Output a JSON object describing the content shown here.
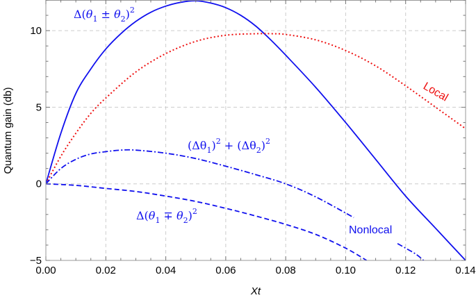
{
  "chart_data": {
    "type": "line",
    "title": "",
    "xlabel": "Xt",
    "ylabel": "Quantum gain (db)",
    "xlim": [
      0,
      0.14
    ],
    "ylim": [
      -5,
      12
    ],
    "x_ticks": [
      0.0,
      0.02,
      0.04,
      0.06,
      0.08,
      0.1,
      0.12,
      0.14
    ],
    "x_tick_labels": [
      "0.00",
      "0.02",
      "0.04",
      "0.06",
      "0.08",
      "0.10",
      "0.12",
      "0.14"
    ],
    "y_ticks": [
      -5,
      0,
      5,
      10
    ],
    "y_tick_labels": [
      "−5",
      "0",
      "5",
      "10"
    ],
    "grid": true,
    "legend": "inline annotations",
    "colors": {
      "nonlocal": "#1010ee",
      "local": "#ee1111",
      "grid": "#cccccc",
      "frame": "#999999"
    },
    "series": [
      {
        "name": "Δ(θ1 ± θ2)^2",
        "style": "solid",
        "color": "#1010ee",
        "x": [
          0,
          0.005,
          0.01,
          0.015,
          0.02,
          0.025,
          0.03,
          0.035,
          0.04,
          0.045,
          0.05,
          0.055,
          0.06,
          0.065,
          0.07,
          0.075,
          0.08,
          0.09,
          0.1,
          0.11,
          0.12,
          0.13,
          0.14
        ],
        "y": [
          0,
          3.3,
          5.9,
          7.5,
          8.8,
          9.8,
          10.6,
          11.2,
          11.6,
          11.85,
          11.95,
          11.8,
          11.5,
          11.0,
          10.3,
          9.4,
          8.4,
          6.3,
          4.0,
          1.6,
          -0.8,
          -2.9,
          -5.0
        ]
      },
      {
        "name": "Local",
        "style": "dotted",
        "color": "#ee1111",
        "x": [
          0,
          0.005,
          0.01,
          0.015,
          0.02,
          0.03,
          0.04,
          0.05,
          0.06,
          0.07,
          0.075,
          0.08,
          0.09,
          0.1,
          0.11,
          0.12,
          0.13,
          0.14
        ],
        "y": [
          0,
          1.8,
          3.3,
          4.6,
          5.6,
          7.3,
          8.5,
          9.3,
          9.7,
          9.8,
          9.8,
          9.75,
          9.4,
          8.7,
          7.7,
          6.4,
          5.0,
          3.6
        ]
      },
      {
        "name": "(Δθ1)^2 + (Δθ2)^2",
        "style": "dash-dot",
        "color": "#1010ee",
        "segments": [
          {
            "x": [
              0,
              0.005,
              0.01,
              0.015,
              0.02,
              0.025,
              0.03,
              0.04,
              0.05,
              0.06,
              0.07,
              0.08,
              0.09,
              0.1027
            ],
            "y": [
              0,
              1.0,
              1.6,
              1.95,
              2.1,
              2.2,
              2.2,
              2.0,
              1.65,
              1.15,
              0.6,
              0.0,
              -0.85,
              -2.2
            ]
          },
          {
            "x": [
              0.1173,
              0.12,
              0.1235,
              0.126
            ],
            "y": [
              -3.9,
              -4.2,
              -4.6,
              -5.0
            ]
          }
        ]
      },
      {
        "name": "Δ(θ1 ∓ θ2)^2",
        "style": "dashed",
        "color": "#1010ee",
        "x": [
          0,
          0.01,
          0.02,
          0.03,
          0.04,
          0.05,
          0.06,
          0.07,
          0.08,
          0.09,
          0.1,
          0.107
        ],
        "y": [
          0,
          -0.1,
          -0.3,
          -0.5,
          -0.8,
          -1.15,
          -1.6,
          -2.1,
          -2.65,
          -3.3,
          -4.2,
          -5.0
        ]
      }
    ],
    "annotations": [
      {
        "text": "Δ(θ1 ± θ2)^2",
        "color": "#1010ee"
      },
      {
        "text": "Local",
        "color": "#ee1111",
        "rotation": 30
      },
      {
        "text": "(Δθ1)^2 + (Δθ2)^2",
        "color": "#1010ee"
      },
      {
        "text": "Δ(θ1 ∓ θ2)^2",
        "color": "#1010ee"
      },
      {
        "text": "Nonlocal",
        "color": "#1010ee"
      }
    ]
  },
  "labels": {
    "xlabel": "Xt",
    "ylabel": "Quantum gain (db)",
    "local": "Local",
    "nonlocal": "Nonlocal",
    "ann_plus": {
      "delta": "Δ(",
      "th1": "θ",
      "s1": "1",
      "op": " ± ",
      "th2": "θ",
      "s2": "2",
      "close": ")",
      "sq": "2"
    },
    "ann_minus": {
      "delta": "Δ(",
      "th1": "θ",
      "s1": "1",
      "op": " ∓ ",
      "th2": "θ",
      "s2": "2",
      "close": ")",
      "sq": "2"
    },
    "ann_sum": {
      "p1": "(Δθ",
      "s1": "1",
      "c1": ")",
      "sq1": "2",
      "plus": " + ",
      "p2": "(Δθ",
      "s2": "2",
      "c2": ")",
      "sq2": "2"
    }
  }
}
